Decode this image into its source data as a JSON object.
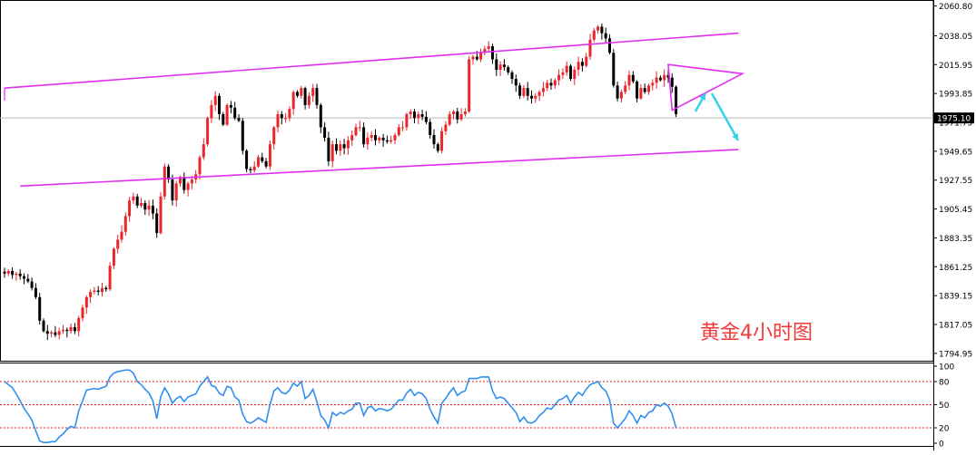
{
  "caption": "黄金4小时图",
  "colors": {
    "up_candle": "#e8262b",
    "down_candle": "#000000",
    "channel": "#e02ff0",
    "oscillator_line": "#2f8ff0",
    "signal_arrow": "#33d3ea",
    "reference_level": "#e01e1e",
    "price_line": "#b9b9b9"
  },
  "chart_data": [
    {
      "type": "candlestick",
      "title": "",
      "subtitle": "",
      "xlabel": "",
      "ylabel": "",
      "ylim": [
        1790.0,
        2064.0
      ],
      "y_ticks": [
        "2060.80",
        "2038.05",
        "2015.95",
        "1993.85",
        "1971.75",
        "1949.65",
        "1927.55",
        "1905.45",
        "1883.35",
        "1861.25",
        "1839.15",
        "1817.05",
        "1794.95"
      ],
      "current_price_label": "1975.10",
      "current_price": 1975.1,
      "grid": false,
      "x_axis_labels": "none",
      "series_close": [
        1856,
        1858,
        1855,
        1856,
        1854,
        1852,
        1850,
        1845,
        1838,
        1820,
        1812,
        1810,
        1811,
        1809,
        1812,
        1813,
        1812,
        1815,
        1812,
        1822,
        1830,
        1838,
        1842,
        1843,
        1842,
        1845,
        1844,
        1862,
        1875,
        1882,
        1888,
        1900,
        1912,
        1915,
        1908,
        1910,
        1905,
        1908,
        1902,
        1887,
        1915,
        1938,
        1928,
        1912,
        1925,
        1930,
        1920,
        1925,
        1928,
        1932,
        1945,
        1955,
        1975,
        1985,
        1992,
        1978,
        1970,
        1985,
        1983,
        1975,
        1973,
        1950,
        1936,
        1935,
        1938,
        1945,
        1942,
        1938,
        1955,
        1968,
        1978,
        1975,
        1975,
        1982,
        1995,
        1992,
        1998,
        1985,
        1992,
        1998,
        1985,
        1968,
        1960,
        1942,
        1955,
        1950,
        1955,
        1952,
        1958,
        1962,
        1968,
        1968,
        1955,
        1960,
        1962,
        1958,
        1960,
        1958,
        1957,
        1958,
        1962,
        1968,
        1968,
        1978,
        1980,
        1975,
        1978,
        1976,
        1972,
        1962,
        1955,
        1950,
        1965,
        1970,
        1978,
        1980,
        1974,
        1978,
        1980,
        2020,
        2022,
        2020,
        2025,
        2028,
        2030,
        2020,
        2012,
        2016,
        2014,
        2010,
        2005,
        2000,
        1992,
        1998,
        1992,
        1990,
        1992,
        1995,
        1998,
        2002,
        2000,
        2004,
        2008,
        2010,
        2015,
        2005,
        2012,
        2018,
        2015,
        2022,
        2035,
        2042,
        2045,
        2040,
        2036,
        2025,
        2000,
        1990,
        1995,
        2000,
        2008,
        2003,
        1990,
        1998,
        1995,
        2000,
        2002,
        2006,
        2004,
        2008,
        2006,
        1999,
        1978
      ],
      "channel_upper": [
        [
          0,
          1998
        ],
        [
          188,
          2040
        ]
      ],
      "channel_lower": [
        [
          4,
          1923
        ],
        [
          188,
          1951
        ]
      ],
      "triangle": [
        [
          170,
          2016
        ],
        [
          189,
          2009
        ],
        [
          171,
          1981
        ]
      ],
      "projection_arrows": [
        "up",
        "down"
      ]
    },
    {
      "type": "line",
      "title": "",
      "ylim": [
        0,
        100
      ],
      "y_ticks": [
        "100",
        "80",
        "50",
        "20",
        "0"
      ],
      "levels": [
        80,
        50,
        20
      ],
      "grid": false,
      "values": [
        80,
        76,
        72,
        64,
        55,
        45,
        38,
        30,
        16,
        3,
        1,
        1,
        2,
        2,
        8,
        12,
        18,
        22,
        20,
        42,
        55,
        69,
        70,
        71,
        70,
        72,
        74,
        86,
        91,
        93,
        94,
        95,
        95,
        91,
        80,
        76,
        70,
        65,
        55,
        32,
        60,
        72,
        64,
        52,
        58,
        61,
        54,
        60,
        62,
        64,
        74,
        80,
        86,
        75,
        73,
        65,
        62,
        74,
        72,
        60,
        56,
        38,
        28,
        26,
        29,
        33,
        30,
        27,
        50,
        68,
        72,
        66,
        64,
        69,
        78,
        74,
        80,
        58,
        62,
        70,
        54,
        36,
        30,
        20,
        40,
        36,
        40,
        38,
        42,
        44,
        52,
        52,
        36,
        46,
        48,
        42,
        45,
        44,
        42,
        44,
        50,
        56,
        56,
        65,
        70,
        62,
        66,
        64,
        58,
        44,
        34,
        26,
        52,
        58,
        66,
        72,
        62,
        66,
        68,
        84,
        84,
        84,
        86,
        86,
        86,
        68,
        58,
        60,
        58,
        52,
        46,
        40,
        28,
        34,
        27,
        26,
        29,
        36,
        40,
        46,
        44,
        50,
        56,
        58,
        62,
        52,
        60,
        66,
        62,
        70,
        76,
        78,
        80,
        72,
        68,
        56,
        26,
        20,
        26,
        32,
        42,
        36,
        26,
        36,
        33,
        40,
        42,
        50,
        48,
        52,
        48,
        38,
        20
      ]
    }
  ]
}
